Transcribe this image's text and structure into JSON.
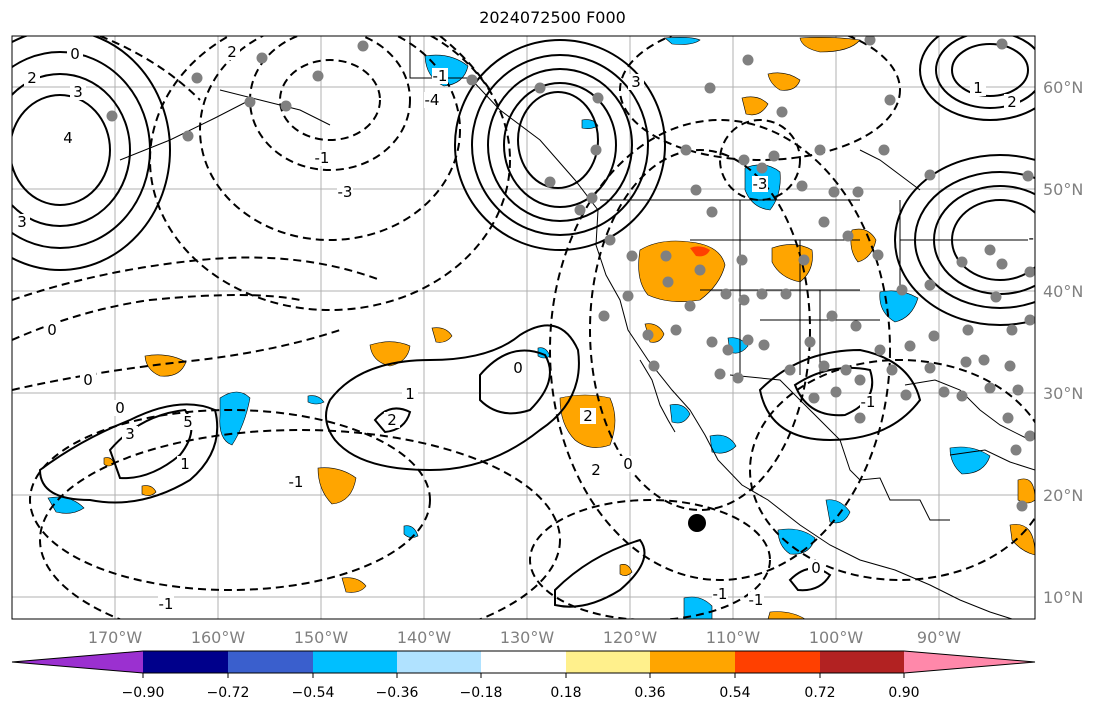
{
  "title": "2024072500 F000",
  "map": {
    "lat_labels": [
      "60°N",
      "50°N",
      "40°N",
      "30°N",
      "20°N",
      "10°N"
    ],
    "lon_labels": [
      "170°W",
      "160°W",
      "150°W",
      "140°W",
      "130°W",
      "120°W",
      "110°W",
      "100°W",
      "90°W"
    ],
    "contour_labels": [
      "0",
      "2",
      "3",
      "4",
      "-1",
      "-3",
      "-4",
      "-1",
      "2",
      "3",
      "1",
      "2",
      "5",
      "3",
      "1",
      "2",
      "3",
      "-2",
      "-1",
      "-1",
      "0",
      "0",
      "-1",
      "0",
      "2",
      "2",
      "0",
      "-1",
      "-1",
      "0",
      "-3",
      "0",
      "1"
    ]
  },
  "colorbar": {
    "ticks": [
      "−0.90",
      "−0.72",
      "−0.54",
      "−0.36",
      "−0.18",
      "0.18",
      "0.36",
      "0.54",
      "0.72",
      "0.90"
    ],
    "colors": [
      "#9b30d0",
      "#00008b",
      "#3a5fcd",
      "#00bfff",
      "#b0e2ff",
      "#ffffff",
      "#fff08c",
      "#ffa500",
      "#ff4000",
      "#b22222",
      "#ff88aa"
    ]
  }
}
